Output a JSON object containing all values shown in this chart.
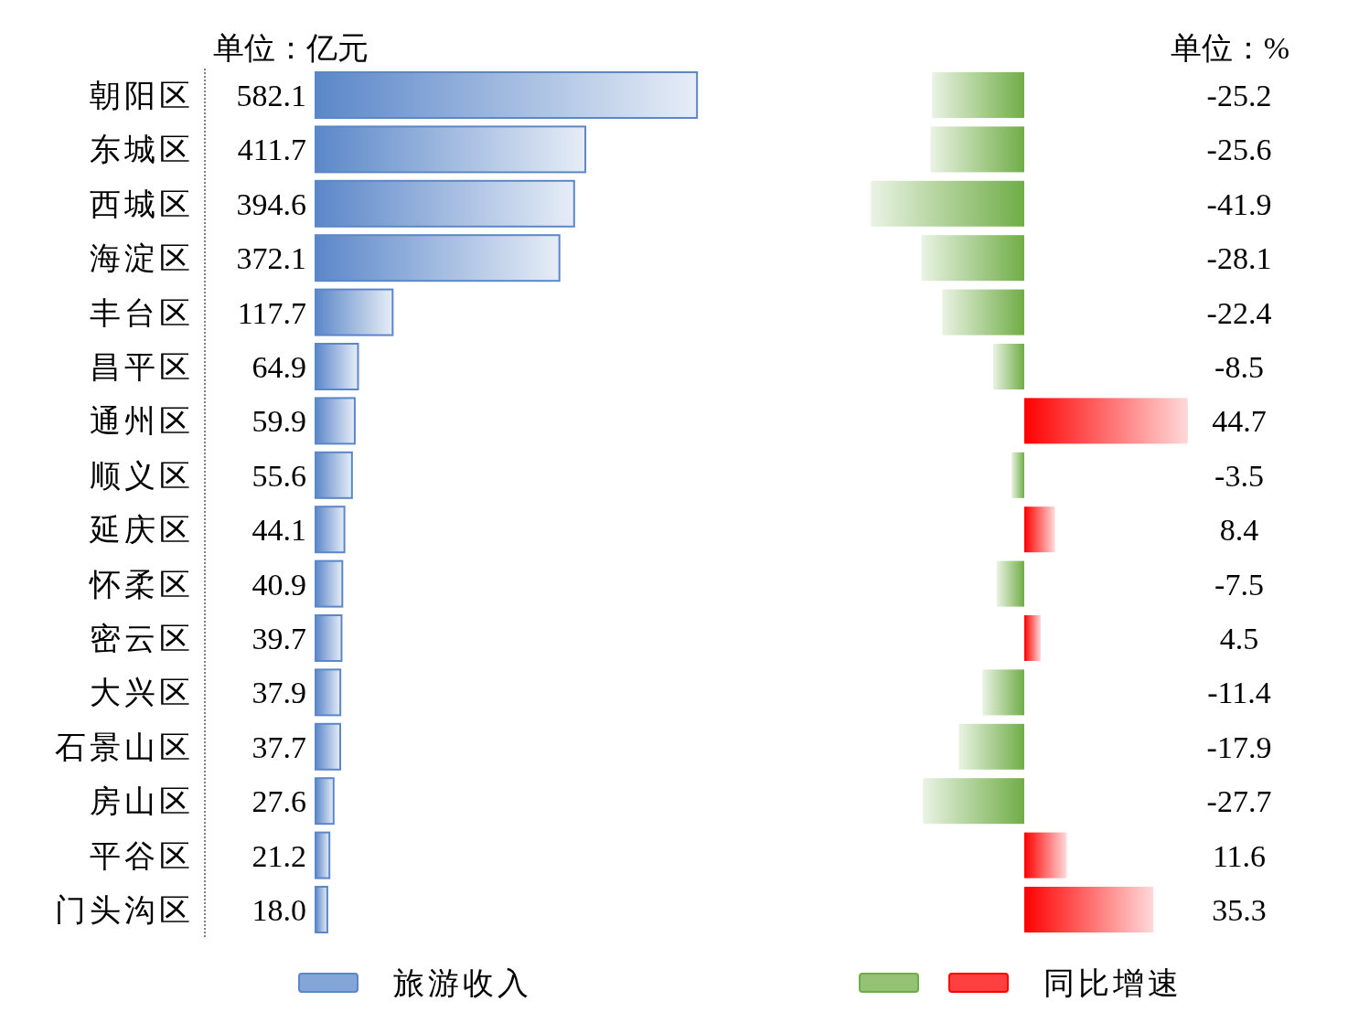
{
  "chart_data": [
    {
      "type": "bar",
      "orientation": "horizontal",
      "legend": "bottom",
      "categories": [
        "朝阳区",
        "东城区",
        "西城区",
        "海淀区",
        "丰台区",
        "昌平区",
        "通州区",
        "顺义区",
        "延庆区",
        "怀柔区",
        "密云区",
        "大兴区",
        "石景山区",
        "房山区",
        "平谷区",
        "门头沟区"
      ],
      "series": [
        {
          "name": "旅游收入",
          "color": "#5b87c9",
          "values": [
            582.1,
            411.7,
            394.6,
            372.1,
            117.7,
            64.9,
            59.9,
            55.6,
            44.1,
            40.9,
            39.7,
            37.9,
            37.7,
            27.6,
            21.2,
            18.0
          ],
          "value_labels": [
            "582.1",
            "411.7",
            "394.6",
            "372.1",
            "117.7",
            "64.9",
            "59.9",
            "55.6",
            "44.1",
            "40.9",
            "39.7",
            "37.9",
            "37.7",
            "27.6",
            "21.2",
            "18.0"
          ]
        }
      ],
      "annotations": [
        "单位：亿元"
      ]
    },
    {
      "type": "bar",
      "orientation": "horizontal",
      "legend": "bottom",
      "categories": [
        null,
        null,
        null,
        null,
        null,
        null,
        null,
        null,
        null,
        null,
        null,
        null,
        null,
        null,
        null,
        null
      ],
      "series": [
        {
          "name": "同比增速",
          "values": [
            -25.2,
            -25.6,
            -41.9,
            -28.1,
            -22.4,
            -8.5,
            44.7,
            -3.5,
            8.4,
            -7.5,
            4.5,
            -11.4,
            -17.9,
            -27.7,
            11.6,
            35.3
          ],
          "colors": [
            "#70ad47",
            "#70ad47",
            "#70ad47",
            "#70ad47",
            "#70ad47",
            "#70ad47",
            "#ff0000",
            "#70ad47",
            "#ff0000",
            "#70ad47",
            "#ff0000",
            "#70ad47",
            "#70ad47",
            "#70ad47",
            "#ff0000",
            "#ff0000"
          ],
          "value_labels": [
            "-25.2",
            "-25.6",
            "-41.9",
            "-28.1",
            "-22.4",
            "-8.5",
            "44.7",
            "-3.5",
            "8.4",
            "-7.5",
            "4.5",
            "-11.4",
            "-17.9",
            "-27.7",
            "11.6",
            "35.3"
          ]
        }
      ],
      "annotations": [
        "单位：%"
      ]
    }
  ]
}
